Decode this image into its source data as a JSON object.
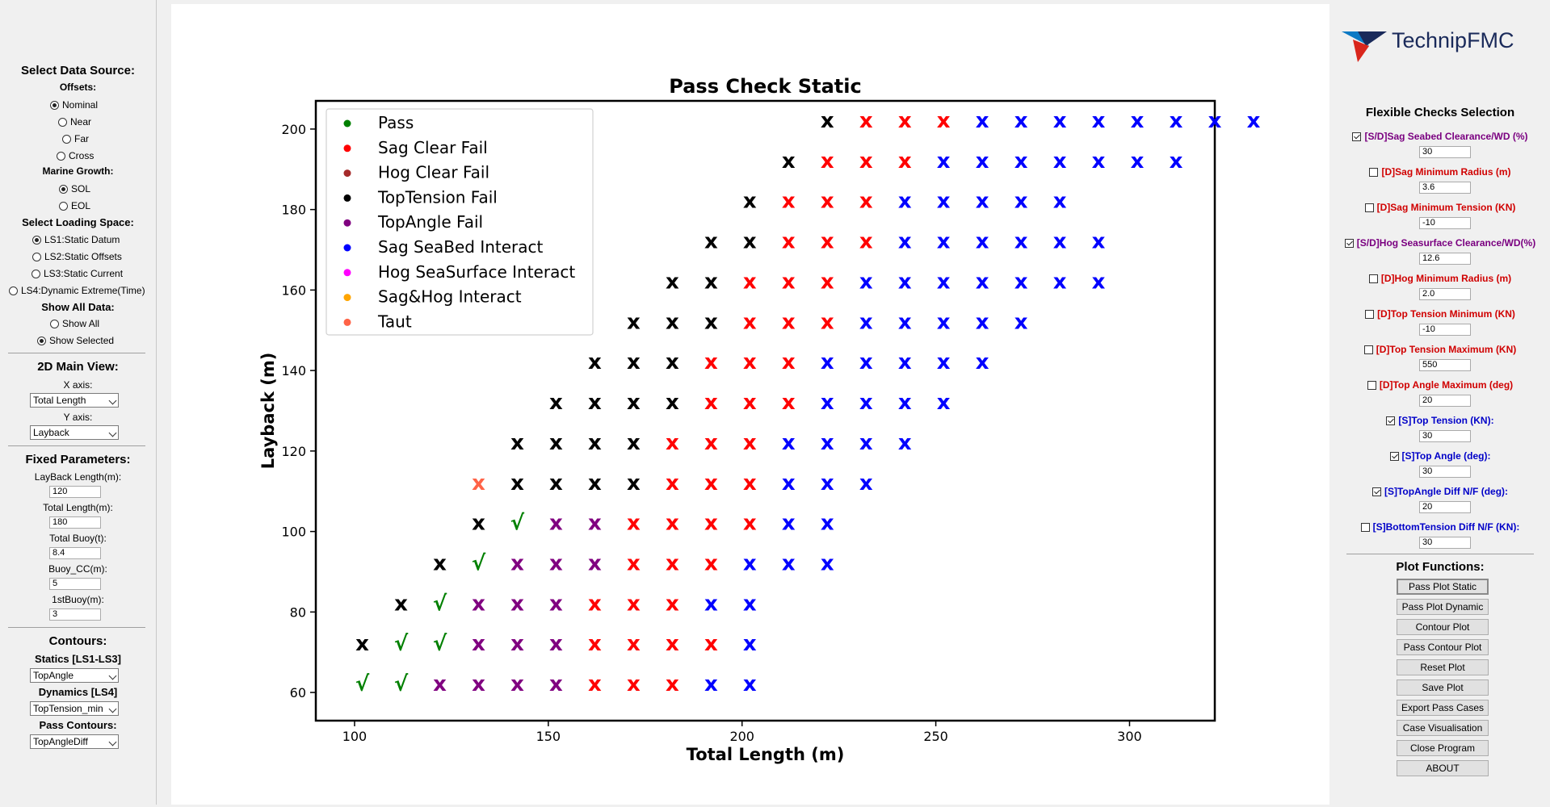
{
  "left_panel": {
    "data_source_title": "Select Data Source:",
    "offsets_label": "Offsets:",
    "offsets": [
      {
        "label": "Nominal",
        "selected": true
      },
      {
        "label": "Near",
        "selected": false
      },
      {
        "label": "Far",
        "selected": false
      },
      {
        "label": "Cross",
        "selected": false
      }
    ],
    "marine_growth_label": "Marine Growth:",
    "marine_growth": [
      {
        "label": "SOL",
        "selected": true
      },
      {
        "label": "EOL",
        "selected": false
      }
    ],
    "loading_space_label": "Select Loading Space:",
    "loading_spaces": [
      {
        "label": "LS1:Static Datum",
        "selected": true
      },
      {
        "label": "LS2:Static Offsets",
        "selected": false
      },
      {
        "label": "LS3:Static Current",
        "selected": false
      },
      {
        "label": "LS4:Dynamic Extreme(Time)",
        "selected": false
      }
    ],
    "show_all_label": "Show All Data:",
    "show_options": [
      {
        "label": "Show All",
        "selected": false
      },
      {
        "label": "Show Selected",
        "selected": true
      }
    ],
    "main_view_title": "2D Main View:",
    "x_axis_label": "X axis:",
    "x_axis_value": "Total Length",
    "y_axis_label": "Y axis:",
    "y_axis_value": "Layback",
    "fixed_params_title": "Fixed Parameters:",
    "fixed_params": [
      {
        "label": "LayBack Length(m):",
        "value": "120"
      },
      {
        "label": "Total Length(m):",
        "value": "180"
      },
      {
        "label": "Total Buoy(t):",
        "value": "8.4"
      },
      {
        "label": "Buoy_CC(m):",
        "value": "5"
      },
      {
        "label": "1stBuoy(m):",
        "value": "3"
      }
    ],
    "contours_title": "Contours:",
    "statics_label": "Statics [LS1-LS3]",
    "statics_value": "TopAngle",
    "dynamics_label": "Dynamics [LS4]",
    "dynamics_value": "TopTension_min",
    "pass_contours_label": "Pass Contours:",
    "pass_contours_value": "TopAngleDiff"
  },
  "right_panel": {
    "logo_text": "TechnipFMC",
    "checks_title": "Flexible Checks Selection",
    "checks": [
      {
        "label": "[S/D]Sag Seabed Clearance/WD (%)",
        "value": "30",
        "checked": true,
        "color": "#7a0080"
      },
      {
        "label": "[D]Sag Minimum Radius (m)",
        "value": "3.6",
        "checked": false,
        "color": "#d00000"
      },
      {
        "label": "[D]Sag Minimum Tension (KN)",
        "value": "-10",
        "checked": false,
        "color": "#d00000"
      },
      {
        "label": "[S/D]Hog Seasurface Clearance/WD(%)",
        "value": "12.6",
        "checked": true,
        "color": "#7a0080"
      },
      {
        "label": "[D]Hog Minimum Radius (m)",
        "value": "2.0",
        "checked": false,
        "color": "#d00000"
      },
      {
        "label": "[D]Top Tension Minimum (KN)",
        "value": "-10",
        "checked": false,
        "color": "#d00000"
      },
      {
        "label": "[D]Top Tension Maximum (KN)",
        "value": "550",
        "checked": false,
        "color": "#d00000"
      },
      {
        "label": "[D]Top Angle Maximum (deg)",
        "value": "20",
        "checked": false,
        "color": "#d00000"
      },
      {
        "label": "[S]Top Tension (KN):",
        "value": "30",
        "checked": true,
        "color": "#0000c8"
      },
      {
        "label": "[S]Top Angle (deg):",
        "value": "30",
        "checked": true,
        "color": "#0000c8"
      },
      {
        "label": "[S]TopAngle Diff N/F (deg):",
        "value": "20",
        "checked": true,
        "color": "#0000c8"
      },
      {
        "label": "[S]BottomTension Diff N/F (KN):",
        "value": "30",
        "checked": false,
        "color": "#0000c8"
      }
    ],
    "plot_functions_title": "Plot Functions:",
    "buttons": [
      "Pass Plot Static",
      "Pass Plot Dynamic",
      "Contour Plot",
      "Pass Contour Plot",
      "Reset Plot",
      "Save Plot",
      "Export Pass Cases",
      "Case Visualisation",
      "Close Program",
      "ABOUT"
    ]
  },
  "chart_data": {
    "type": "scatter",
    "title": "Pass Check Static",
    "xlabel": "Total Length (m)",
    "ylabel": "Layback (m)",
    "xlim": [
      90,
      322
    ],
    "ylim": [
      53,
      207
    ],
    "xticks": [
      100,
      150,
      200,
      250,
      300
    ],
    "yticks": [
      60,
      80,
      100,
      120,
      140,
      160,
      180,
      200
    ],
    "grid": false,
    "legend_position": "top-left",
    "legend": [
      {
        "name": "Pass",
        "color": "#008000"
      },
      {
        "name": "Sag Clear Fail",
        "color": "#ff0000"
      },
      {
        "name": "Hog Clear Fail",
        "color": "#a52a2a"
      },
      {
        "name": "TopTension Fail",
        "color": "#000000"
      },
      {
        "name": "TopAngle Fail",
        "color": "#800080"
      },
      {
        "name": "Sag SeaBed Interact",
        "color": "#0000ff"
      },
      {
        "name": "Hog SeaSurface Interact",
        "color": "#ff00ff"
      },
      {
        "name": "Sag&Hog Interact",
        "color": "#ffa500"
      },
      {
        "name": "Taut",
        "color": "#ff6347"
      }
    ],
    "layback_rows": [
      62,
      72,
      82,
      92,
      102,
      112,
      122,
      132,
      142,
      152,
      162,
      172,
      182,
      192,
      202
    ],
    "total_length_step": 10,
    "rows": [
      {
        "start": 102,
        "codes": "PPTTTTSSSBB"
      },
      {
        "start": 102,
        "codes": "KPPTTTSSSSB"
      },
      {
        "start": 112,
        "codes": "KPTTTSSSBB"
      },
      {
        "start": 122,
        "codes": "KPTTTSSSBBB"
      },
      {
        "start": 132,
        "codes": "KPTTSSSSBB"
      },
      {
        "start": 132,
        "codes": "OKKKKSSSBBB"
      },
      {
        "start": 142,
        "codes": "KKKKSSSBBBB"
      },
      {
        "start": 152,
        "codes": "KKKKSSSBBBB"
      },
      {
        "start": 162,
        "codes": "KKKSSSBBBBB"
      },
      {
        "start": 172,
        "codes": "KKKSSSBBBBB"
      },
      {
        "start": 182,
        "codes": "KKSSSBBBBBBB"
      },
      {
        "start": 192,
        "codes": "KKSSSBBBBBB"
      },
      {
        "start": 202,
        "codes": "KSSSBBBBB"
      },
      {
        "start": 212,
        "codes": "KSSSBBBBBBB"
      },
      {
        "start": 222,
        "codes": "KSSSBBBBBBBB"
      }
    ],
    "code_key": {
      "P": {
        "symbol": "√",
        "color": "#008000"
      },
      "K": {
        "symbol": "x",
        "color": "#000000"
      },
      "T": {
        "symbol": "x",
        "color": "#800080"
      },
      "S": {
        "symbol": "x",
        "color": "#ff0000"
      },
      "B": {
        "symbol": "x",
        "color": "#0000ff"
      },
      "O": {
        "symbol": "x",
        "color": "#ff6347"
      }
    }
  }
}
